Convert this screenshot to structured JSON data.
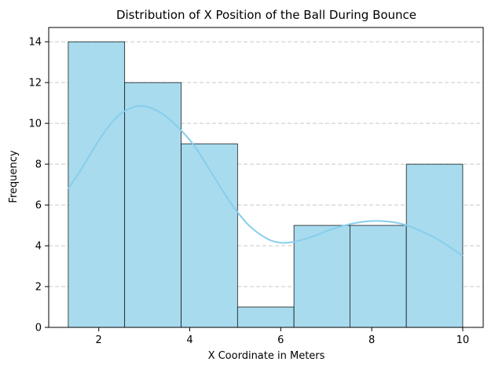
{
  "chart_data": {
    "type": "bar",
    "title": "Distribution of X Position of the Ball During Bounce",
    "xlabel": "X Coordinate in Meters",
    "ylabel": "Frequency",
    "bins": [
      {
        "x0": 1.33,
        "x1": 2.57,
        "count": 14
      },
      {
        "x0": 2.57,
        "x1": 3.81,
        "count": 12
      },
      {
        "x0": 3.81,
        "x1": 5.05,
        "count": 9
      },
      {
        "x0": 5.05,
        "x1": 6.29,
        "count": 1
      },
      {
        "x0": 6.29,
        "x1": 7.52,
        "count": 5
      },
      {
        "x0": 7.52,
        "x1": 8.76,
        "count": 5
      },
      {
        "x0": 8.76,
        "x1": 10.0,
        "count": 8
      }
    ],
    "kde": {
      "x": [
        1.33,
        1.6,
        1.9,
        2.2,
        2.5,
        2.9,
        3.3,
        3.7,
        4.1,
        4.5,
        4.9,
        5.3,
        5.7,
        6.0,
        6.3,
        6.7,
        7.1,
        7.5,
        7.9,
        8.3,
        8.7,
        9.1,
        9.5,
        10.0
      ],
      "y": [
        6.8,
        7.7,
        8.8,
        9.8,
        10.5,
        10.85,
        10.6,
        9.9,
        8.9,
        7.5,
        6.1,
        5.0,
        4.35,
        4.15,
        4.2,
        4.45,
        4.8,
        5.05,
        5.2,
        5.2,
        5.05,
        4.7,
        4.25,
        3.5
      ]
    },
    "xticks": [
      2,
      4,
      6,
      8,
      10
    ],
    "yticks": [
      0,
      2,
      4,
      6,
      8,
      10,
      12,
      14
    ],
    "xlim": [
      0.9,
      10.45
    ],
    "ylim": [
      0,
      14.7
    ],
    "grid": "y-dashed",
    "colors": {
      "bar_fill": "#a8dbee",
      "bar_edge": "#000000",
      "kde_line": "#87ceeb",
      "grid": "#c8c8c8"
    }
  }
}
